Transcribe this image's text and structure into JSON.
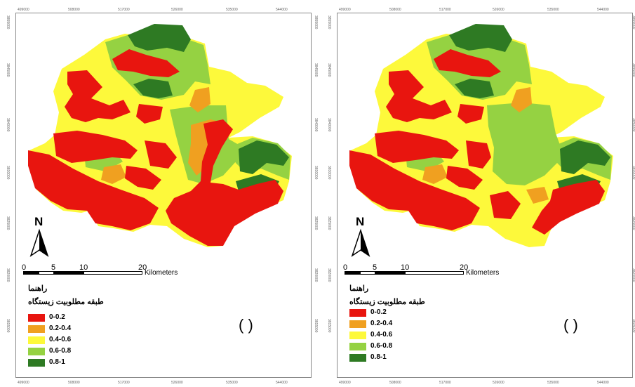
{
  "panels": [
    {
      "id": "left",
      "x_ticks": [
        "499000",
        "508000",
        "517000",
        "526000",
        "535000",
        "544000"
      ],
      "y_ticks": [
        "3855000",
        "3845000",
        "3840000",
        "3830000",
        "3825000",
        "3820000",
        "3815000",
        "3810000"
      ],
      "north_label": "N",
      "scale": {
        "labels": [
          "0",
          "5",
          "10",
          "20"
        ],
        "unit": "Kilometers"
      },
      "legend": {
        "title": "راهنما",
        "subtitle": "طبقه مطلوبیت زیستگاه",
        "items": [
          {
            "label": "0-0.2",
            "color": "#e8150f"
          },
          {
            "label": "0.2-0.4",
            "color": "#f0a020"
          },
          {
            "label": "0.4-0.6",
            "color": "#fdf93b"
          },
          {
            "label": "0.6-0.8",
            "color": "#95d242"
          },
          {
            "label": "0.8-1",
            "color": "#2e7a23"
          }
        ]
      },
      "panel_label": "(   )"
    },
    {
      "id": "right",
      "x_ticks": [
        "499000",
        "508000",
        "517000",
        "526000",
        "535000",
        "544000"
      ],
      "y_ticks": [
        "3855000",
        "3845000",
        "3840000",
        "3830000",
        "3825000",
        "3820000",
        "3815000",
        "3810000"
      ],
      "north_label": "N",
      "scale": {
        "labels": [
          "0",
          "5",
          "10",
          "20"
        ],
        "unit": "Kilometers"
      },
      "legend": {
        "title": "راهنما",
        "subtitle": "طبقه مطلوبیت زیستگاه",
        "items": [
          {
            "label": "0-0.2",
            "color": "#e8150f"
          },
          {
            "label": "0.2-0.4",
            "color": "#f0a020"
          },
          {
            "label": "0.4-0.6",
            "color": "#fdf93b"
          },
          {
            "label": "0.6-0.8",
            "color": "#95d242"
          },
          {
            "label": "0.8-1",
            "color": "#2e7a23"
          }
        ]
      },
      "panel_label": "(   )"
    }
  ]
}
